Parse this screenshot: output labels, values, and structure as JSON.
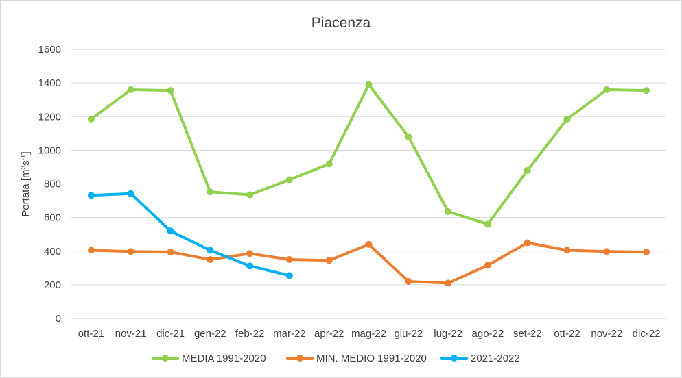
{
  "chart_data": {
    "type": "line",
    "title": "Piacenza",
    "xlabel": "",
    "ylabel": {
      "main": "Portata [m",
      "sup1": "3",
      "mid": "s",
      "sup2": "-1",
      "end": "]"
    },
    "ylim": [
      0,
      1600
    ],
    "yticks": [
      0,
      200,
      400,
      600,
      800,
      1000,
      1200,
      1400,
      1600
    ],
    "grid": true,
    "legend_position": "bottom",
    "categories": [
      "ott-21",
      "nov-21",
      "dic-21",
      "gen-22",
      "feb-22",
      "mar-22",
      "apr-22",
      "mag-22",
      "giu-22",
      "lug-22",
      "ago-22",
      "set-22",
      "ott-22",
      "nov-22",
      "dic-22"
    ],
    "series": [
      {
        "name": "MEDIA 1991-2020",
        "color": "#92d050",
        "values": [
          1185,
          1360,
          1355,
          752,
          735,
          825,
          918,
          1390,
          1080,
          635,
          560,
          880,
          1185,
          1360,
          1355
        ]
      },
      {
        "name": "MIN. MEDIO 1991-2020",
        "color": "#ed7d31",
        "values": [
          405,
          398,
          395,
          350,
          386,
          350,
          345,
          440,
          220,
          210,
          316,
          450,
          405,
          398,
          395
        ]
      },
      {
        "name": "2021-2022",
        "color": "#00b0f0",
        "values": [
          732,
          742,
          520,
          405,
          312,
          255,
          null,
          null,
          null,
          null,
          null,
          null,
          null,
          null,
          null
        ]
      }
    ]
  }
}
